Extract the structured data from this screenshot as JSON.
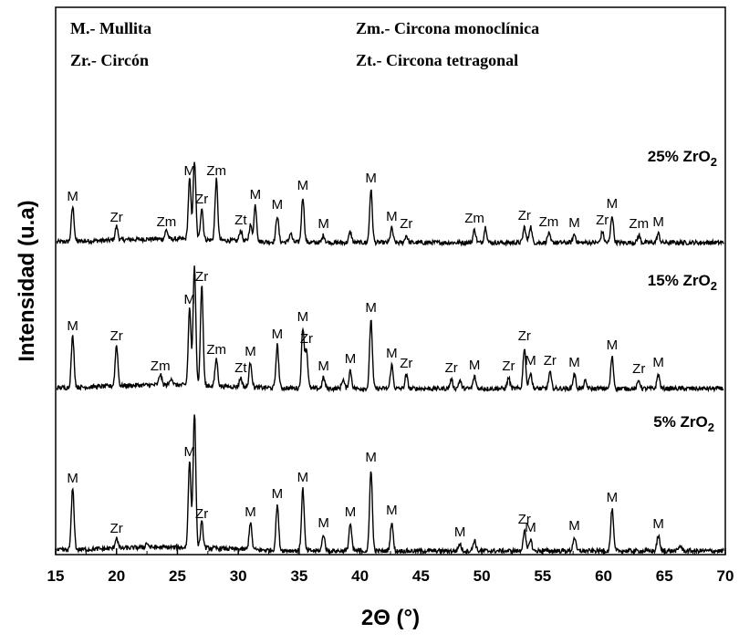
{
  "chart_data": {
    "type": "line",
    "xlabel": "2Θ (°)",
    "ylabel": "Intensidad (u.a)",
    "xlim": [
      15,
      70
    ],
    "x_ticks": [
      15,
      20,
      25,
      30,
      35,
      40,
      45,
      50,
      55,
      60,
      65,
      70
    ],
    "y_ticks_shown": false,
    "grid": false,
    "legend": [
      {
        "text": "M.- Mullita"
      },
      {
        "text": "Zr.- Circón"
      },
      {
        "text": "Zm.- Circona monoclínica"
      },
      {
        "text": "Zt.- Circona tetragonal"
      }
    ],
    "series": [
      {
        "name": "25% ZrO2",
        "label": "25% ZrO",
        "label_sub": "2",
        "peaks": [
          {
            "x": 16.4,
            "h": 38,
            "label": "M"
          },
          {
            "x": 20.0,
            "h": 15,
            "label": "Zr"
          },
          {
            "x": 24.1,
            "h": 10,
            "label": "Zm"
          },
          {
            "x": 26.0,
            "h": 66,
            "label": "M"
          },
          {
            "x": 26.4,
            "h": 86,
            "label": ""
          },
          {
            "x": 27.0,
            "h": 35,
            "label": "Zr"
          },
          {
            "x": 28.2,
            "h": 66,
            "label": "Zm"
          },
          {
            "x": 30.2,
            "h": 12,
            "label": "Zt"
          },
          {
            "x": 31.0,
            "h": 18,
            "label": ""
          },
          {
            "x": 31.4,
            "h": 40,
            "label": "M"
          },
          {
            "x": 33.2,
            "h": 29,
            "label": "M"
          },
          {
            "x": 34.3,
            "h": 10,
            "label": ""
          },
          {
            "x": 35.3,
            "h": 50,
            "label": "M"
          },
          {
            "x": 37.0,
            "h": 8,
            "label": "M"
          },
          {
            "x": 39.2,
            "h": 12,
            "label": ""
          },
          {
            "x": 40.9,
            "h": 58,
            "label": "M"
          },
          {
            "x": 42.6,
            "h": 16,
            "label": "M"
          },
          {
            "x": 43.8,
            "h": 8,
            "label": "Zr"
          },
          {
            "x": 49.4,
            "h": 14,
            "label": "Zm"
          },
          {
            "x": 50.3,
            "h": 17,
            "label": ""
          },
          {
            "x": 53.5,
            "h": 17,
            "label": "Zr"
          },
          {
            "x": 54.0,
            "h": 18,
            "label": ""
          },
          {
            "x": 55.5,
            "h": 10,
            "label": "Zm"
          },
          {
            "x": 57.6,
            "h": 9,
            "label": "M"
          },
          {
            "x": 59.9,
            "h": 12,
            "label": "Zr"
          },
          {
            "x": 60.7,
            "h": 30,
            "label": "M"
          },
          {
            "x": 62.9,
            "h": 8,
            "label": "Zm"
          },
          {
            "x": 64.5,
            "h": 10,
            "label": "M"
          }
        ]
      },
      {
        "name": "15% ZrO2",
        "label": "15% ZrO",
        "label_sub": "2",
        "peaks": [
          {
            "x": 16.4,
            "h": 56,
            "label": "M"
          },
          {
            "x": 20.0,
            "h": 45,
            "label": "Zr"
          },
          {
            "x": 23.6,
            "h": 12,
            "label": "Zm"
          },
          {
            "x": 24.5,
            "h": 8,
            "label": ""
          },
          {
            "x": 26.0,
            "h": 85,
            "label": "M"
          },
          {
            "x": 26.4,
            "h": 132,
            "label": ""
          },
          {
            "x": 27.0,
            "h": 110,
            "label": "Zr"
          },
          {
            "x": 28.2,
            "h": 30,
            "label": "Zm"
          },
          {
            "x": 30.2,
            "h": 10,
            "label": "Zt"
          },
          {
            "x": 31.0,
            "h": 28,
            "label": "M"
          },
          {
            "x": 33.2,
            "h": 47,
            "label": "M"
          },
          {
            "x": 35.3,
            "h": 66,
            "label": "M"
          },
          {
            "x": 35.6,
            "h": 42,
            "label": "Zr"
          },
          {
            "x": 37.0,
            "h": 12,
            "label": "M"
          },
          {
            "x": 38.6,
            "h": 10,
            "label": ""
          },
          {
            "x": 39.2,
            "h": 20,
            "label": "M"
          },
          {
            "x": 40.9,
            "h": 76,
            "label": "M"
          },
          {
            "x": 42.6,
            "h": 26,
            "label": "M"
          },
          {
            "x": 43.8,
            "h": 15,
            "label": "Zr"
          },
          {
            "x": 47.5,
            "h": 10,
            "label": "Zr"
          },
          {
            "x": 48.2,
            "h": 9,
            "label": ""
          },
          {
            "x": 49.4,
            "h": 13,
            "label": "M"
          },
          {
            "x": 52.2,
            "h": 12,
            "label": "Zr"
          },
          {
            "x": 53.5,
            "h": 45,
            "label": "Zr"
          },
          {
            "x": 54.0,
            "h": 18,
            "label": "M"
          },
          {
            "x": 55.6,
            "h": 18,
            "label": "Zr"
          },
          {
            "x": 57.6,
            "h": 16,
            "label": "M"
          },
          {
            "x": 58.5,
            "h": 8,
            "label": ""
          },
          {
            "x": 60.7,
            "h": 35,
            "label": "M"
          },
          {
            "x": 62.9,
            "h": 9,
            "label": "Zr"
          },
          {
            "x": 64.5,
            "h": 16,
            "label": "M"
          }
        ]
      },
      {
        "name": "5% ZrO2",
        "label": "5% ZrO",
        "label_sub": "2",
        "peaks": [
          {
            "x": 16.4,
            "h": 67,
            "label": "M"
          },
          {
            "x": 20.0,
            "h": 12,
            "label": "Zr"
          },
          {
            "x": 22.5,
            "h": 5,
            "label": ""
          },
          {
            "x": 26.0,
            "h": 96,
            "label": "M"
          },
          {
            "x": 26.4,
            "h": 148,
            "label": ""
          },
          {
            "x": 27.0,
            "h": 28,
            "label": "Zr"
          },
          {
            "x": 31.0,
            "h": 30,
            "label": "M"
          },
          {
            "x": 33.2,
            "h": 50,
            "label": "M"
          },
          {
            "x": 35.3,
            "h": 68,
            "label": "M"
          },
          {
            "x": 37.0,
            "h": 18,
            "label": "M"
          },
          {
            "x": 39.2,
            "h": 30,
            "label": "M"
          },
          {
            "x": 40.9,
            "h": 90,
            "label": "M"
          },
          {
            "x": 42.6,
            "h": 32,
            "label": "M"
          },
          {
            "x": 48.2,
            "h": 8,
            "label": "M"
          },
          {
            "x": 49.4,
            "h": 12,
            "label": ""
          },
          {
            "x": 53.5,
            "h": 22,
            "label": "Zr"
          },
          {
            "x": 54.0,
            "h": 13,
            "label": "M"
          },
          {
            "x": 57.6,
            "h": 15,
            "label": "M"
          },
          {
            "x": 60.7,
            "h": 46,
            "label": "M"
          },
          {
            "x": 64.5,
            "h": 17,
            "label": "M"
          },
          {
            "x": 66.3,
            "h": 6,
            "label": ""
          }
        ]
      }
    ]
  }
}
